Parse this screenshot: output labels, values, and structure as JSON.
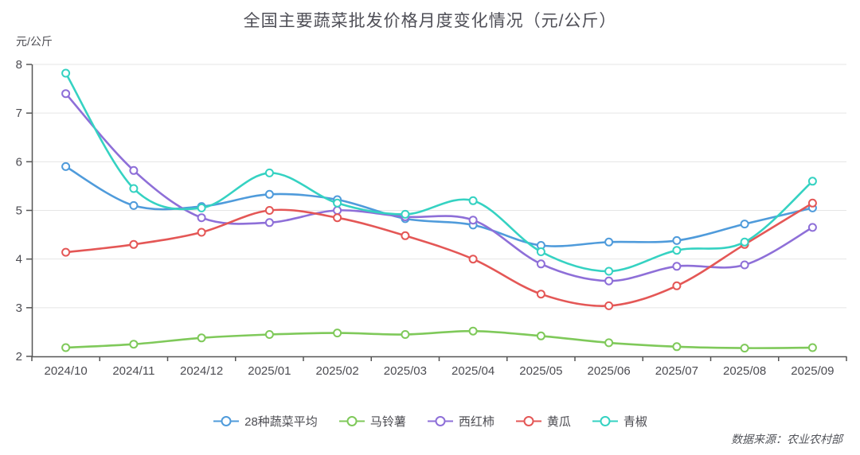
{
  "chart": {
    "title": "全国主要蔬菜批发价格月度变化情况（元/公斤）",
    "y_unit": "元/公斤",
    "source_note": "数据来源：农业农村部"
  },
  "chart_data": {
    "type": "line",
    "title": "全国主要蔬菜批发价格月度变化情况（元/公斤）",
    "ylabel": "元/公斤",
    "xlabel": "",
    "grid": true,
    "smooth": true,
    "legend_position": "bottom",
    "ylim": [
      2,
      8
    ],
    "y_ticks": [
      2,
      3,
      4,
      5,
      6,
      7,
      8
    ],
    "categories": [
      "2024/10",
      "2024/11",
      "2024/12",
      "2025/01",
      "2025/02",
      "2025/03",
      "2025/04",
      "2025/05",
      "2025/06",
      "2025/07",
      "2025/08",
      "2025/09"
    ],
    "series": [
      {
        "id": "avg-28-vegetables",
        "name": "28种蔬菜平均",
        "color": "#4F9BDB",
        "values": [
          5.9,
          5.1,
          5.08,
          5.33,
          5.22,
          4.83,
          4.7,
          4.28,
          4.35,
          4.38,
          4.72,
          5.05
        ]
      },
      {
        "id": "potato",
        "name": "马铃薯",
        "color": "#7FC95A",
        "values": [
          2.18,
          2.25,
          2.38,
          2.45,
          2.48,
          2.45,
          2.52,
          2.42,
          2.28,
          2.2,
          2.17,
          2.18
        ]
      },
      {
        "id": "tomato",
        "name": "西红柿",
        "color": "#8E6FD8",
        "values": [
          7.4,
          5.82,
          4.85,
          4.75,
          5.0,
          4.87,
          4.8,
          3.9,
          3.55,
          3.85,
          3.88,
          4.65
        ]
      },
      {
        "id": "cucumber",
        "name": "黄瓜",
        "color": "#E45756",
        "values": [
          4.14,
          4.3,
          4.55,
          5.0,
          4.85,
          4.48,
          4.0,
          3.28,
          3.04,
          3.45,
          4.3,
          5.15
        ]
      },
      {
        "id": "green-pepper",
        "name": "青椒",
        "color": "#35D2C2",
        "values": [
          7.82,
          5.45,
          5.05,
          5.77,
          5.15,
          4.92,
          5.2,
          4.15,
          3.75,
          4.18,
          4.35,
          5.6
        ]
      }
    ],
    "source_note": "数据来源：农业农村部"
  },
  "style": {
    "axis_color": "#555555",
    "tick_label_color": "#4c4c52",
    "grid_color": "#e5e5e5"
  }
}
